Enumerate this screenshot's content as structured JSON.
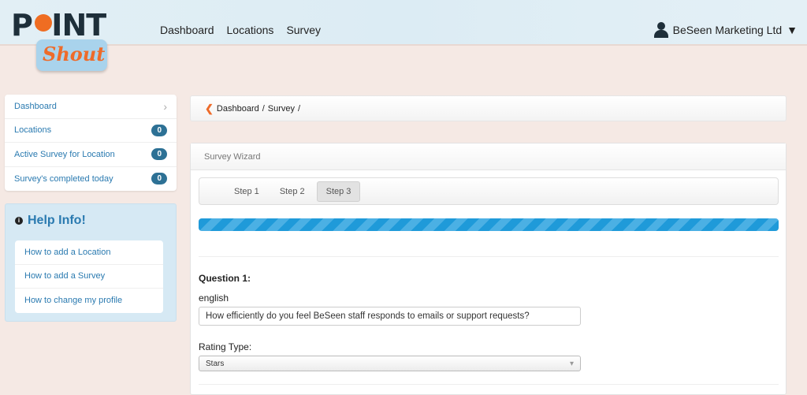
{
  "logo": {
    "text_top": "POINT",
    "text_bottom": "Shout"
  },
  "nav": {
    "items": [
      "Dashboard",
      "Locations",
      "Survey"
    ]
  },
  "user": {
    "name": "BeSeen Marketing Ltd",
    "caret": "▼"
  },
  "sidebar": {
    "items": [
      {
        "label": "Dashboard",
        "chevron": "›"
      },
      {
        "label": "Locations",
        "count": "0"
      },
      {
        "label": "Active Survey for Location",
        "count": "0"
      },
      {
        "label": "Survey's completed today",
        "count": "0"
      }
    ]
  },
  "help": {
    "title": "Help Info!",
    "links": [
      "How to add a Location",
      "How to add a Survey",
      "How to change my profile"
    ]
  },
  "breadcrumb": {
    "back": "❮",
    "items": [
      "Dashboard",
      "/",
      "Survey",
      "/"
    ]
  },
  "wizard": {
    "title": "Survey Wizard",
    "steps": [
      "Step 1",
      "Step 2",
      "Step 3"
    ],
    "active_step": "Step 3",
    "progress_percent": 100,
    "question_label": "Question 1:",
    "language_label": "english",
    "question_value": "How efficiently do you feel BeSeen staff responds to emails or support requests?",
    "rating_label": "Rating Type:",
    "rating_value": "Stars",
    "select_caret": "▾"
  },
  "colors": {
    "accent": "#ee6b2a",
    "link": "#2a7ab0",
    "badge": "#2d7195",
    "progress": "#1f9ad9"
  }
}
